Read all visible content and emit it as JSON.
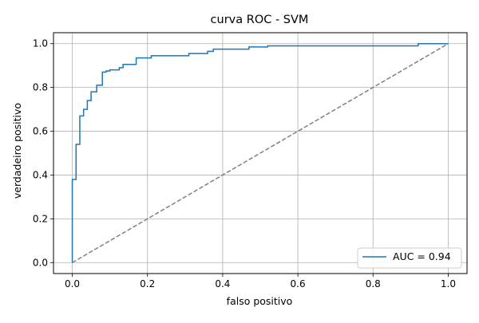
{
  "chart_data": {
    "type": "line",
    "title": "curva ROC - SVM",
    "xlabel": "falso positivo",
    "ylabel": "verdadeiro positivo",
    "xlim": [
      -0.05,
      1.05
    ],
    "ylim": [
      -0.05,
      1.05
    ],
    "xticks": [
      0.0,
      0.2,
      0.4,
      0.6,
      0.8,
      1.0
    ],
    "yticks": [
      0.0,
      0.2,
      0.4,
      0.6,
      0.8,
      1.0
    ],
    "xtick_labels": [
      "0.0",
      "0.2",
      "0.4",
      "0.6",
      "0.8",
      "1.0"
    ],
    "ytick_labels": [
      "0.0",
      "0.2",
      "0.4",
      "0.6",
      "0.8",
      "1.0"
    ],
    "grid": true,
    "legend_position": "lower right",
    "series": [
      {
        "name": "AUC = 0.94",
        "color": "#1f77b4",
        "style": "solid",
        "x": [
          0.0,
          0.0,
          0.01,
          0.01,
          0.02,
          0.02,
          0.03,
          0.03,
          0.04,
          0.04,
          0.05,
          0.05,
          0.065,
          0.065,
          0.08,
          0.08,
          0.09,
          0.09,
          0.1,
          0.1,
          0.125,
          0.125,
          0.135,
          0.135,
          0.17,
          0.17,
          0.21,
          0.21,
          0.31,
          0.31,
          0.36,
          0.36,
          0.375,
          0.375,
          0.47,
          0.47,
          0.52,
          0.52,
          0.92,
          0.92,
          1.0
        ],
        "y": [
          0.0,
          0.38,
          0.38,
          0.54,
          0.54,
          0.67,
          0.67,
          0.7,
          0.7,
          0.74,
          0.74,
          0.78,
          0.78,
          0.81,
          0.81,
          0.87,
          0.87,
          0.875,
          0.875,
          0.88,
          0.88,
          0.89,
          0.89,
          0.905,
          0.905,
          0.935,
          0.935,
          0.945,
          0.945,
          0.955,
          0.955,
          0.965,
          0.965,
          0.975,
          0.975,
          0.985,
          0.985,
          0.99,
          0.99,
          1.0,
          1.0
        ]
      },
      {
        "color": "#808080",
        "style": "dashed",
        "x": [
          0.0,
          1.0
        ],
        "y": [
          0.0,
          1.0
        ]
      }
    ]
  }
}
